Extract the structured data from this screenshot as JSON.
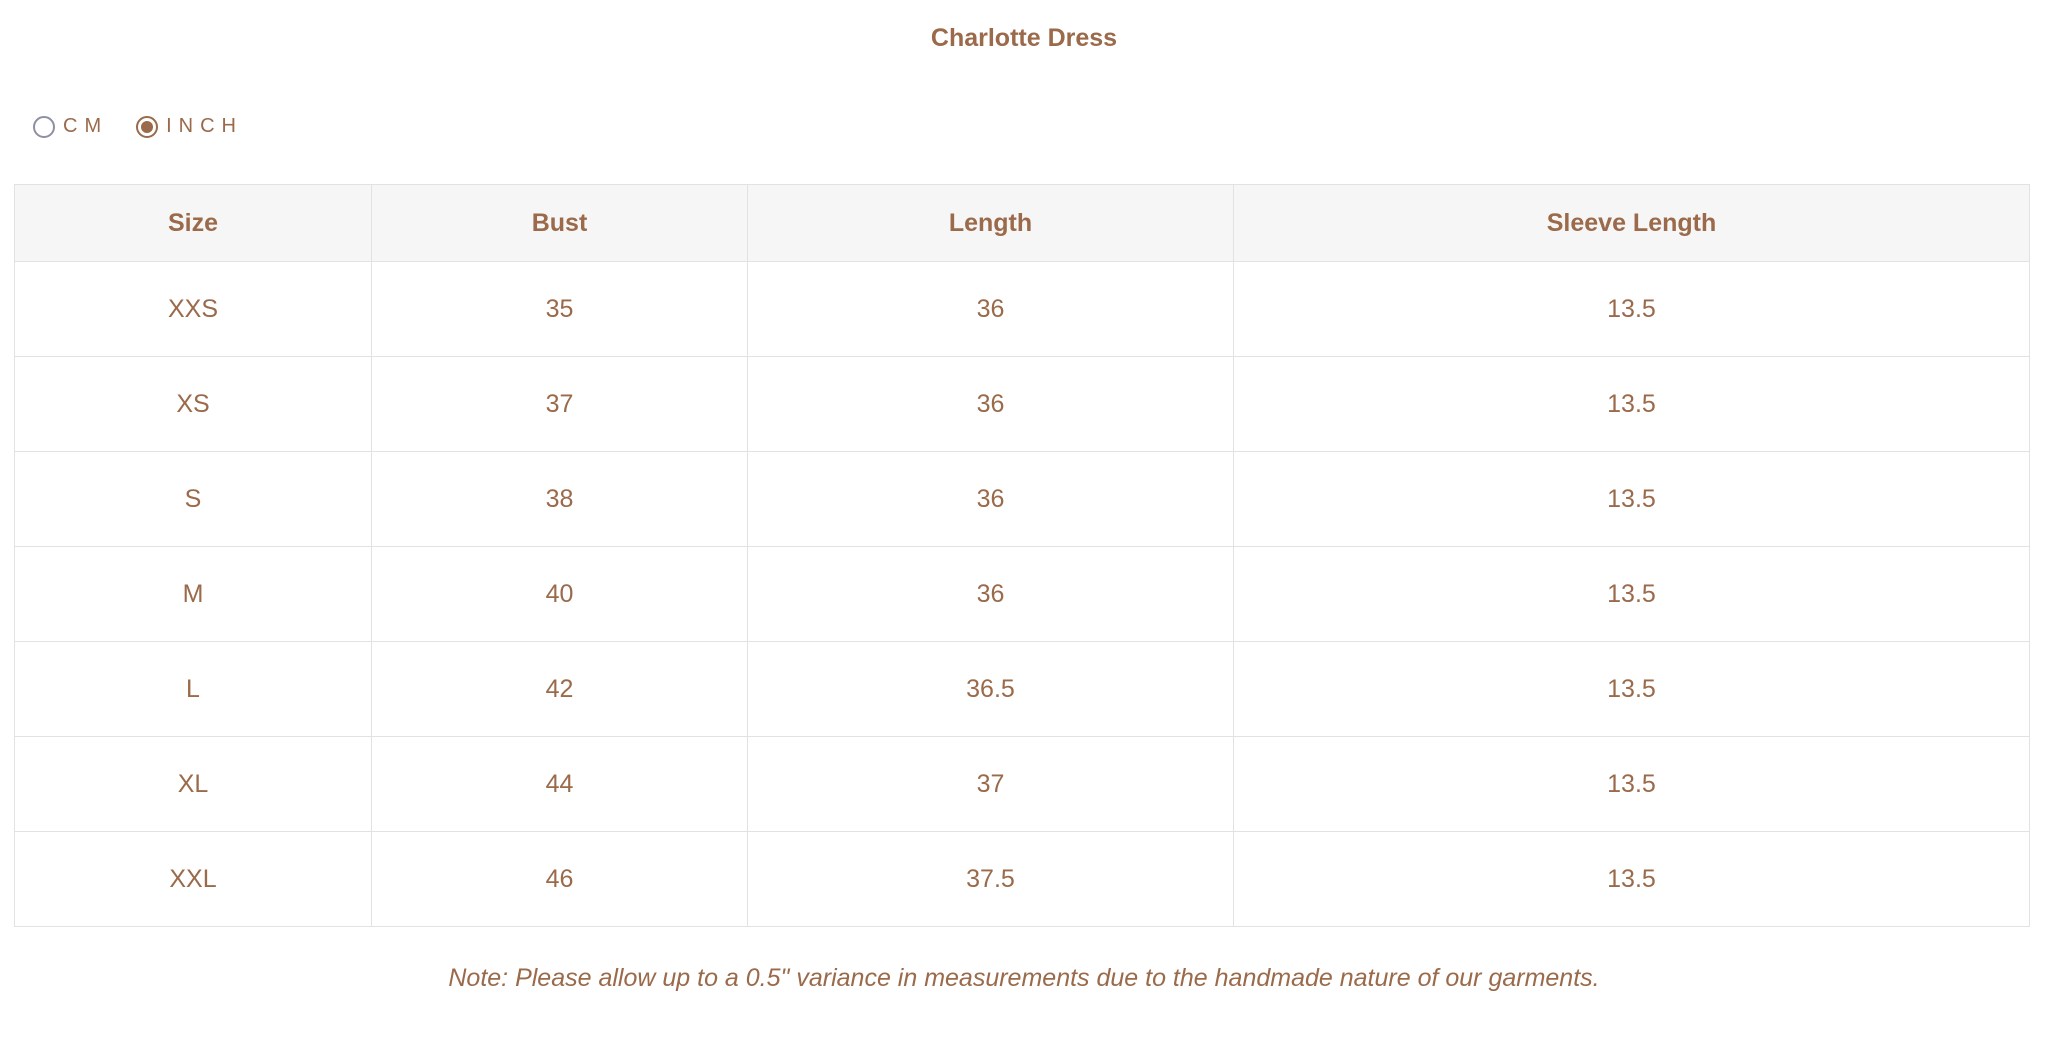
{
  "title": "Charlotte Dress",
  "units": [
    {
      "label": "CM",
      "selected": false
    },
    {
      "label": "INCH",
      "selected": true
    }
  ],
  "table": {
    "headers": [
      "Size",
      "Bust",
      "Length",
      "Sleeve Length"
    ],
    "rows": [
      [
        "XXS",
        "35",
        "36",
        "13.5"
      ],
      [
        "XS",
        "37",
        "36",
        "13.5"
      ],
      [
        "S",
        "38",
        "36",
        "13.5"
      ],
      [
        "M",
        "40",
        "36",
        "13.5"
      ],
      [
        "L",
        "42",
        "36.5",
        "13.5"
      ],
      [
        "XL",
        "44",
        "37",
        "13.5"
      ],
      [
        "XXL",
        "46",
        "37.5",
        "13.5"
      ]
    ]
  },
  "note": "Note: Please allow up to a 0.5\" variance in measurements due to the handmade nature of our garments.",
  "colors": {
    "text": "#9a6a4a",
    "header_bg": "#f6f6f6",
    "border": "#e2e2e2"
  }
}
